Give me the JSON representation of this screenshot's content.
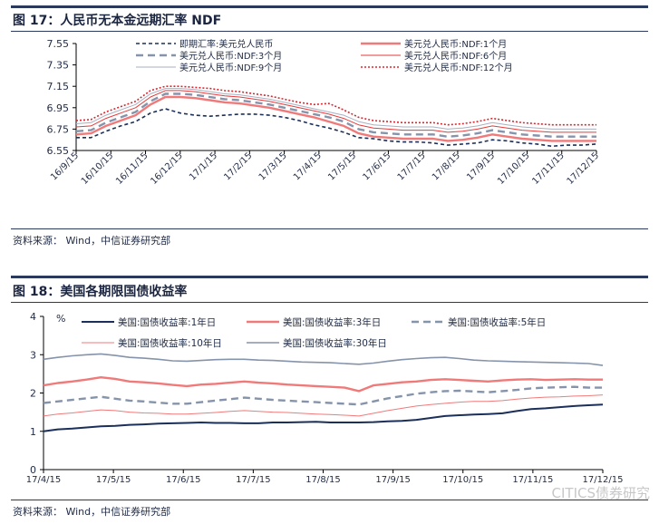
{
  "figures": [
    {
      "title": "图 17：人民币无本金远期汇率 NDF",
      "source": "资料来源：   Wind，中信证券研究部"
    },
    {
      "title": "图 18：美国各期限国债收益率",
      "source": "资料来源：   Wind，中信证券研究部"
    }
  ],
  "watermark": "CITICS债券研究",
  "chart_data": [
    {
      "type": "line",
      "title": "",
      "xlabel": "",
      "ylabel": "",
      "ylim": [
        6.55,
        7.55
      ],
      "yticks": [
        "7.55",
        "7.35",
        "7.15",
        "6.95",
        "6.75",
        "6.55"
      ],
      "xticks": [
        "16/9/15",
        "16/10/15",
        "16/11/15",
        "16/12/15",
        "17/1/15",
        "17/2/15",
        "17/3/15",
        "17/4/15",
        "17/5/15",
        "17/6/15",
        "17/7/15",
        "17/8/15",
        "17/9/15",
        "17/10/15",
        "17/11/15",
        "17/12/15"
      ],
      "grid": false,
      "legend": "top",
      "series": [
        {
          "name": "即期汇率:美元兑人民币",
          "color": "#1b2f5a",
          "dash": "4,3",
          "width": 1.6,
          "values": [
            6.67,
            6.67,
            6.73,
            6.78,
            6.82,
            6.9,
            6.94,
            6.9,
            6.88,
            6.87,
            6.88,
            6.89,
            6.89,
            6.88,
            6.86,
            6.83,
            6.79,
            6.76,
            6.72,
            6.67,
            6.66,
            6.64,
            6.63,
            6.63,
            6.62,
            6.6,
            6.61,
            6.62,
            6.65,
            6.64,
            6.62,
            6.61,
            6.59,
            6.6,
            6.6,
            6.61
          ]
        },
        {
          "name": "美元兑人民币:NDF:1个月",
          "color": "#f07a7a",
          "dash": "",
          "width": 2.4,
          "values": [
            6.7,
            6.71,
            6.78,
            6.83,
            6.88,
            6.98,
            7.05,
            7.05,
            7.04,
            7.02,
            7.0,
            6.99,
            6.97,
            6.95,
            6.92,
            6.89,
            6.86,
            6.82,
            6.78,
            6.71,
            6.68,
            6.67,
            6.66,
            6.66,
            6.66,
            6.64,
            6.65,
            6.67,
            6.7,
            6.68,
            6.66,
            6.65,
            6.64,
            6.64,
            6.64,
            6.64
          ]
        },
        {
          "name": "美元兑人民币:NDF:3个月",
          "color": "#8593ab",
          "dash": "8,5",
          "width": 2.4,
          "values": [
            6.73,
            6.74,
            6.81,
            6.86,
            6.91,
            7.01,
            7.08,
            7.08,
            7.07,
            7.05,
            7.03,
            7.02,
            7.0,
            6.98,
            6.95,
            6.92,
            6.89,
            6.86,
            6.82,
            6.75,
            6.72,
            6.71,
            6.7,
            6.7,
            6.7,
            6.68,
            6.69,
            6.71,
            6.74,
            6.72,
            6.7,
            6.69,
            6.68,
            6.68,
            6.68,
            6.68
          ]
        },
        {
          "name": "美元兑人民币:NDF:6个月",
          "color": "#e63b3b",
          "dash": "",
          "width": 1.0,
          "values": [
            6.77,
            6.78,
            6.85,
            6.9,
            6.95,
            7.05,
            7.11,
            7.11,
            7.1,
            7.08,
            7.06,
            7.05,
            7.03,
            7.01,
            6.98,
            6.95,
            6.92,
            6.89,
            6.85,
            6.79,
            6.76,
            6.75,
            6.74,
            6.74,
            6.74,
            6.72,
            6.73,
            6.75,
            6.78,
            6.76,
            6.74,
            6.73,
            6.72,
            6.72,
            6.72,
            6.72
          ]
        },
        {
          "name": "美元兑人民币:NDF:9个月",
          "color": "#a7b0c2",
          "dash": "",
          "width": 1.0,
          "values": [
            6.8,
            6.81,
            6.88,
            6.93,
            6.98,
            7.08,
            7.13,
            7.13,
            7.12,
            7.1,
            7.08,
            7.07,
            7.05,
            7.03,
            7.0,
            6.97,
            6.94,
            6.91,
            6.88,
            6.82,
            6.79,
            6.78,
            6.77,
            6.77,
            6.77,
            6.75,
            6.76,
            6.78,
            6.81,
            6.79,
            6.77,
            6.76,
            6.75,
            6.75,
            6.75,
            6.75
          ]
        },
        {
          "name": "美元兑人民币:NDF:12个月",
          "color": "#d9262e",
          "dash": "2,2",
          "width": 1.6,
          "values": [
            6.83,
            6.84,
            6.91,
            6.96,
            7.01,
            7.11,
            7.15,
            7.15,
            7.14,
            7.13,
            7.11,
            7.1,
            7.08,
            7.06,
            7.03,
            7.0,
            6.98,
            6.99,
            6.93,
            6.86,
            6.83,
            6.82,
            6.81,
            6.81,
            6.81,
            6.79,
            6.8,
            6.82,
            6.85,
            6.83,
            6.81,
            6.8,
            6.79,
            6.79,
            6.79,
            6.79
          ]
        }
      ]
    },
    {
      "type": "line",
      "title": "",
      "xlabel": "",
      "ylabel": "%",
      "ylim": [
        0,
        4
      ],
      "yticks": [
        "4",
        "3",
        "2",
        "1",
        "0"
      ],
      "xticks": [
        "17/4/15",
        "17/5/15",
        "17/6/15",
        "17/7/15",
        "17/8/15",
        "17/9/15",
        "17/10/15",
        "17/11/15",
        "17/12/15"
      ],
      "grid": false,
      "legend": "top",
      "series": [
        {
          "name": "美国:国债收益率:1年日",
          "color": "#1b2f5a",
          "dash": "",
          "width": 2.0,
          "values": [
            1.0,
            1.05,
            1.07,
            1.1,
            1.13,
            1.14,
            1.17,
            1.18,
            1.2,
            1.21,
            1.22,
            1.23,
            1.22,
            1.22,
            1.21,
            1.21,
            1.23,
            1.23,
            1.24,
            1.25,
            1.23,
            1.23,
            1.23,
            1.24,
            1.26,
            1.27,
            1.3,
            1.35,
            1.4,
            1.42,
            1.44,
            1.45,
            1.47,
            1.53,
            1.58,
            1.6,
            1.63,
            1.66,
            1.68,
            1.7
          ]
        },
        {
          "name": "美国:国债收益率:3年日",
          "color": "#f07a7a",
          "dash": "",
          "width": 2.4,
          "values": [
            2.2,
            2.26,
            2.3,
            2.35,
            2.41,
            2.37,
            2.3,
            2.28,
            2.25,
            2.21,
            2.18,
            2.22,
            2.24,
            2.27,
            2.3,
            2.27,
            2.25,
            2.22,
            2.2,
            2.18,
            2.16,
            2.14,
            2.05,
            2.2,
            2.24,
            2.28,
            2.3,
            2.34,
            2.36,
            2.34,
            2.32,
            2.3,
            2.33,
            2.35,
            2.36,
            2.34,
            2.35,
            2.36,
            2.35,
            2.35
          ]
        },
        {
          "name": "美国:国债收益率:5年日",
          "color": "#8593ab",
          "dash": "8,5",
          "width": 2.4,
          "values": [
            1.74,
            1.78,
            1.82,
            1.86,
            1.9,
            1.85,
            1.8,
            1.78,
            1.75,
            1.72,
            1.72,
            1.76,
            1.8,
            1.84,
            1.88,
            1.85,
            1.82,
            1.8,
            1.78,
            1.76,
            1.74,
            1.72,
            1.7,
            1.78,
            1.86,
            1.92,
            1.98,
            2.02,
            2.05,
            2.06,
            2.04,
            2.02,
            2.05,
            2.08,
            2.12,
            2.14,
            2.15,
            2.16,
            2.14,
            2.14
          ]
        },
        {
          "name": "美国:国债收益率:10年日",
          "color": "#f07a7a",
          "dash": "",
          "width": 1.0,
          "values": [
            1.4,
            1.45,
            1.48,
            1.52,
            1.56,
            1.54,
            1.5,
            1.48,
            1.47,
            1.45,
            1.45,
            1.47,
            1.49,
            1.52,
            1.54,
            1.52,
            1.5,
            1.49,
            1.47,
            1.45,
            1.44,
            1.42,
            1.4,
            1.47,
            1.54,
            1.6,
            1.66,
            1.7,
            1.73,
            1.76,
            1.78,
            1.78,
            1.8,
            1.84,
            1.87,
            1.89,
            1.9,
            1.92,
            1.93,
            1.95
          ]
        },
        {
          "name": "美国:国债收益率:30年日",
          "color": "#8593ab",
          "dash": "",
          "width": 1.6,
          "values": [
            2.88,
            2.93,
            2.97,
            3.0,
            3.02,
            2.98,
            2.93,
            2.91,
            2.88,
            2.84,
            2.83,
            2.85,
            2.87,
            2.88,
            2.88,
            2.86,
            2.85,
            2.83,
            2.81,
            2.8,
            2.79,
            2.77,
            2.75,
            2.78,
            2.83,
            2.87,
            2.9,
            2.92,
            2.93,
            2.9,
            2.86,
            2.84,
            2.83,
            2.82,
            2.81,
            2.8,
            2.79,
            2.78,
            2.77,
            2.72
          ]
        }
      ]
    }
  ]
}
